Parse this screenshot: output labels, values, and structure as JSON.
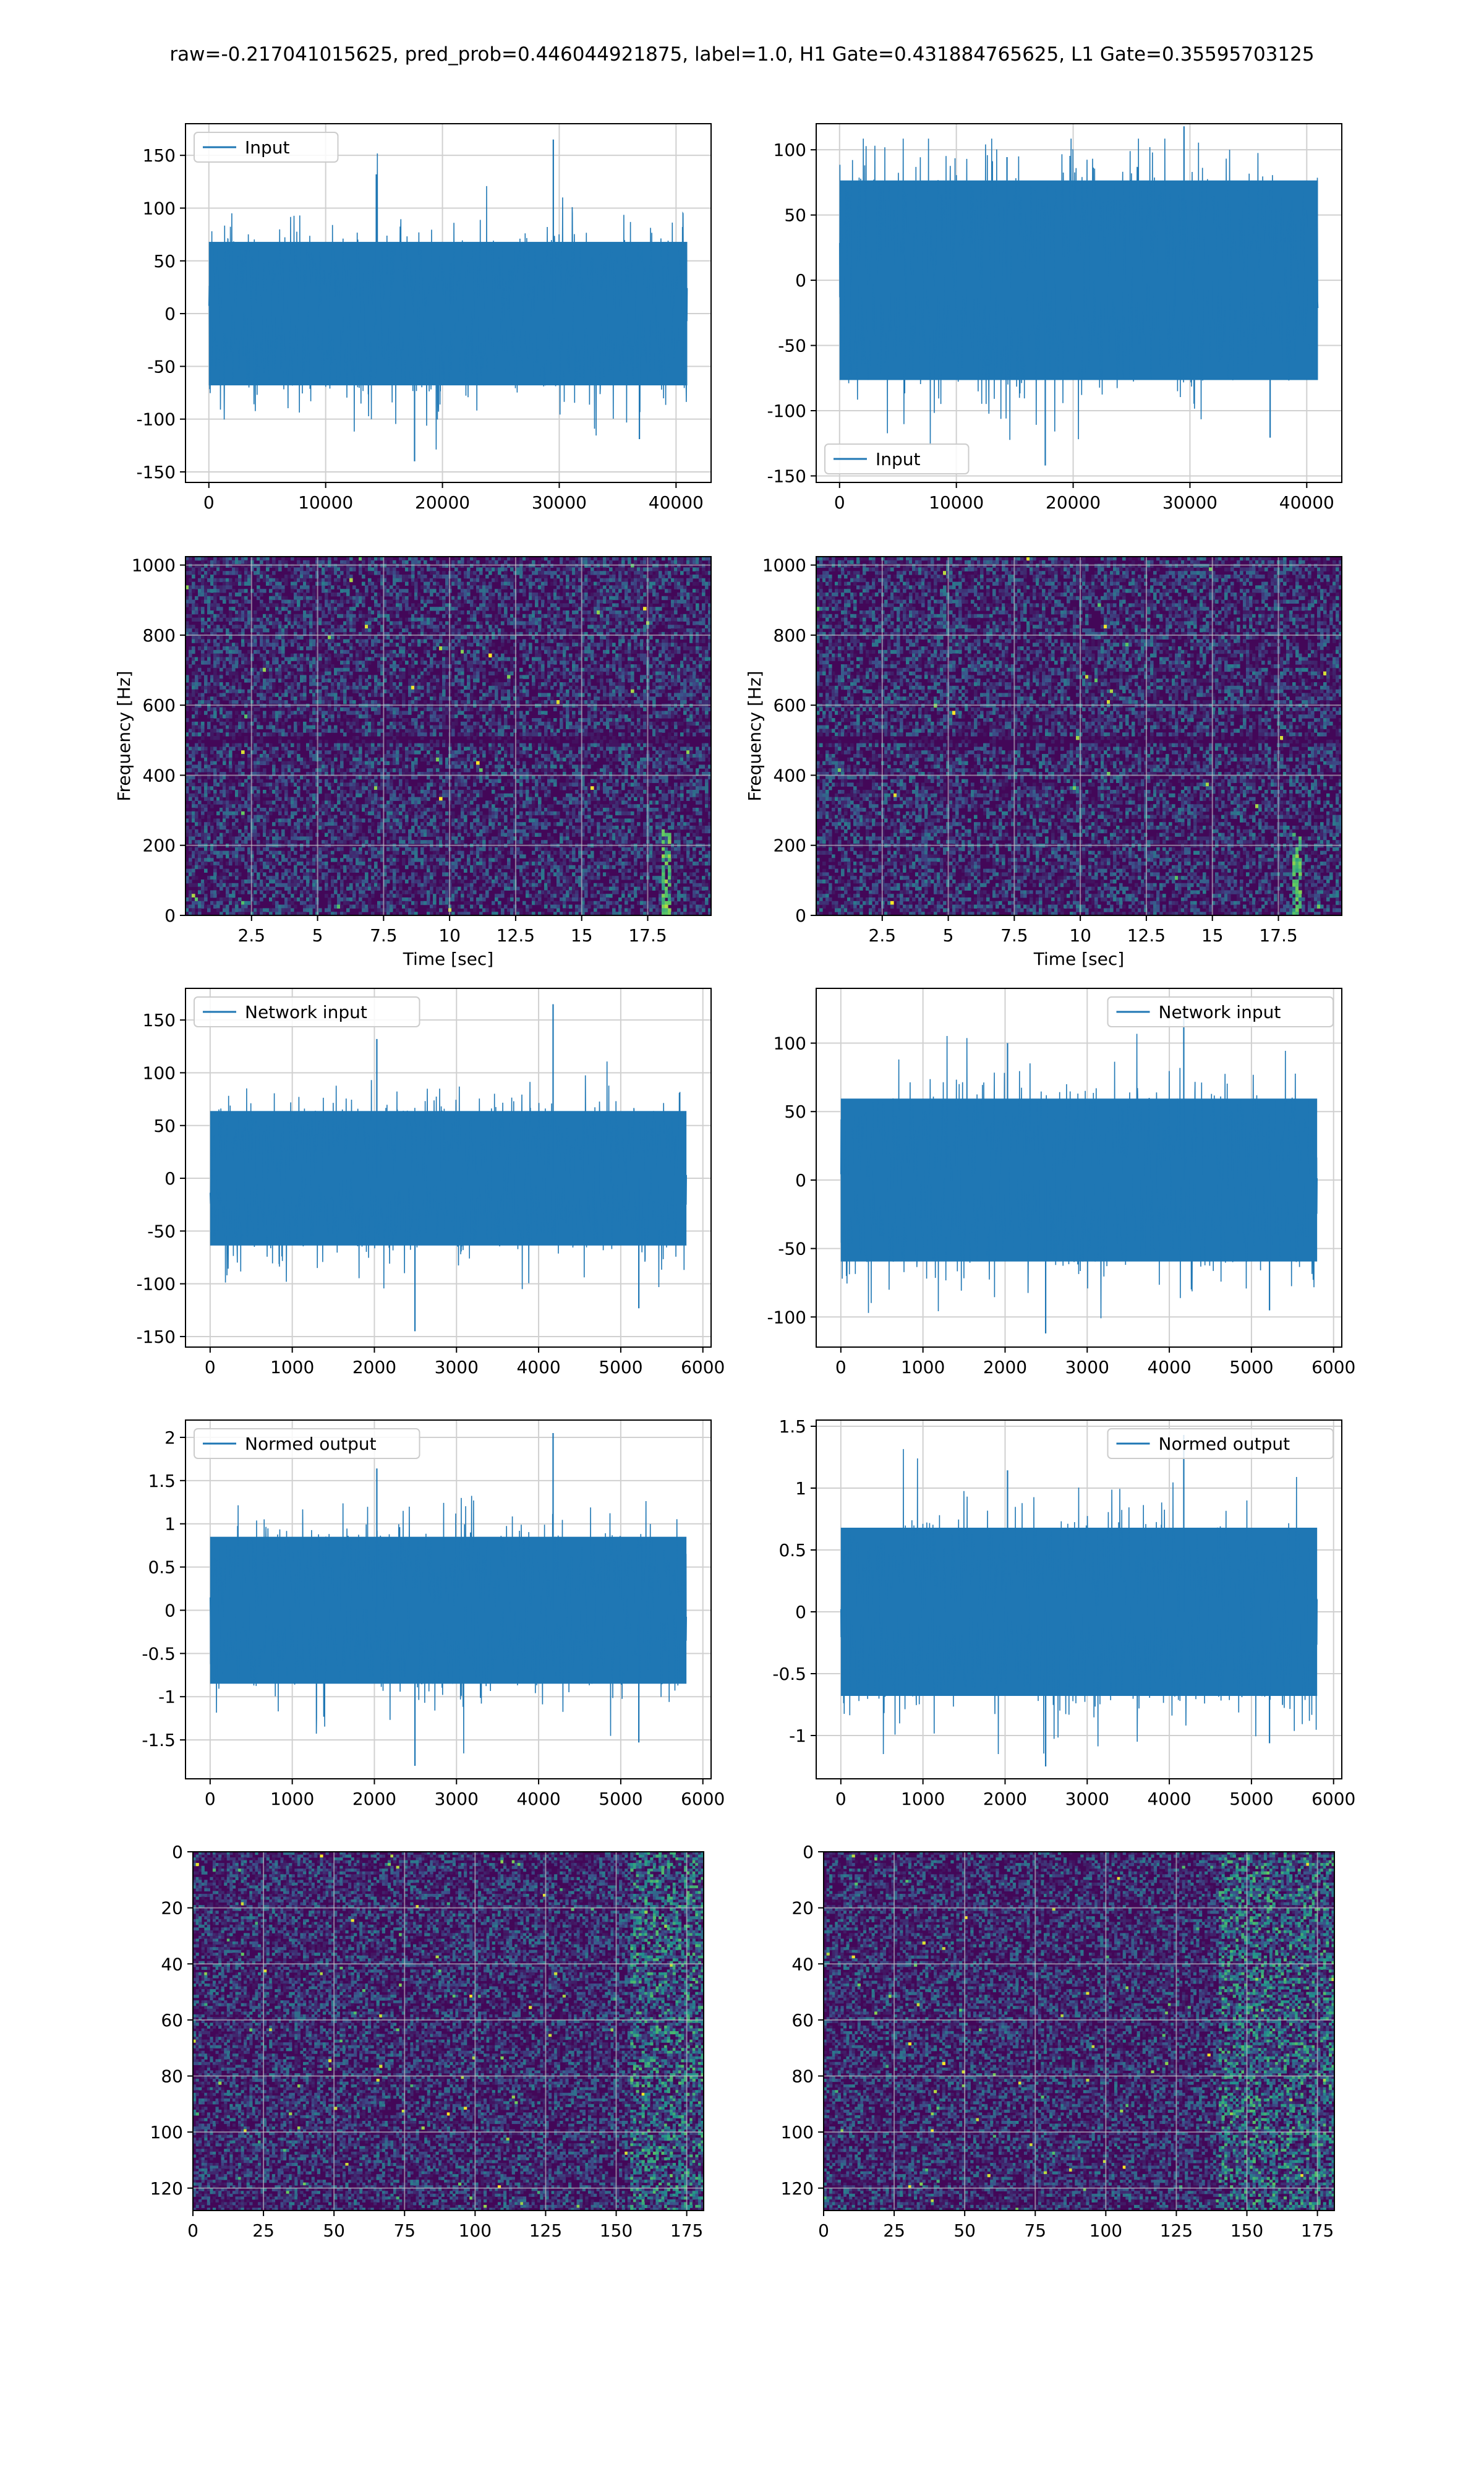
{
  "figure": {
    "title": "raw=-0.217041015625, pred_prob=0.446044921875, label=1.0, H1 Gate=0.431884765625, L1 Gate=0.35595703125"
  },
  "colors": {
    "line": "#1f77b4",
    "grid": "#d0d0d0",
    "viridis_low": "#3b1259",
    "viridis_high": "#fde725"
  },
  "chart_data": [
    {
      "id": "h1-input",
      "type": "line",
      "row": 0,
      "col": 0,
      "series": [
        {
          "name": "Input",
          "n": 40960,
          "amplitude_typical": 80,
          "extremes": {
            "max": 165,
            "min": -140
          }
        }
      ],
      "xlim": [
        -2000,
        43000
      ],
      "ylim": [
        -160,
        180
      ],
      "xticks": [
        0,
        10000,
        20000,
        30000,
        40000
      ],
      "yticks": [
        -150,
        -100,
        -50,
        0,
        50,
        100,
        150
      ],
      "legend": "upper left",
      "grid": true,
      "xlabel": "",
      "ylabel": ""
    },
    {
      "id": "l1-input",
      "type": "line",
      "row": 0,
      "col": 1,
      "series": [
        {
          "name": "Input",
          "n": 40960,
          "amplitude_typical": 90,
          "extremes": {
            "max": 118,
            "min": -142
          }
        }
      ],
      "xlim": [
        -2000,
        43000
      ],
      "ylim": [
        -155,
        120
      ],
      "xticks": [
        0,
        10000,
        20000,
        30000,
        40000
      ],
      "yticks": [
        -150,
        -100,
        -50,
        0,
        50,
        100
      ],
      "legend": "lower left",
      "grid": true,
      "xlabel": "",
      "ylabel": ""
    },
    {
      "id": "h1-spectrogram",
      "type": "heatmap",
      "row": 1,
      "col": 0,
      "xlim": [
        0,
        19.9
      ],
      "ylim": [
        0,
        1024
      ],
      "xticks": [
        2.5,
        5.0,
        7.5,
        10.0,
        12.5,
        15.0,
        17.5
      ],
      "yticks": [
        0,
        200,
        400,
        600,
        800,
        1000
      ],
      "xlabel": "Time [sec]",
      "ylabel": "Frequency [Hz]",
      "grid": true,
      "features": {
        "dark_band_hz": 500,
        "bright_transient_sec": 18.2
      }
    },
    {
      "id": "l1-spectrogram",
      "type": "heatmap",
      "row": 1,
      "col": 1,
      "xlim": [
        0,
        19.9
      ],
      "ylim": [
        0,
        1024
      ],
      "xticks": [
        2.5,
        5.0,
        7.5,
        10.0,
        12.5,
        15.0,
        17.5
      ],
      "yticks": [
        0,
        200,
        400,
        600,
        800,
        1000
      ],
      "xlabel": "Time [sec]",
      "ylabel": "Frequency [Hz]",
      "grid": true,
      "features": {
        "dark_band_hz": 500,
        "bright_transient_sec": 18.2
      }
    },
    {
      "id": "h1-network-input",
      "type": "line",
      "row": 2,
      "col": 0,
      "series": [
        {
          "name": "Network input",
          "n": 5800,
          "amplitude_typical": 75,
          "extremes": {
            "max": 165,
            "min": -145
          }
        }
      ],
      "xlim": [
        -300,
        6100
      ],
      "ylim": [
        -160,
        180
      ],
      "xticks": [
        0,
        1000,
        2000,
        3000,
        4000,
        5000,
        6000
      ],
      "yticks": [
        -150,
        -100,
        -50,
        0,
        50,
        100,
        150
      ],
      "legend": "upper left",
      "grid": true,
      "xlabel": "",
      "ylabel": ""
    },
    {
      "id": "l1-network-input",
      "type": "line",
      "row": 2,
      "col": 1,
      "series": [
        {
          "name": "Network input",
          "n": 5800,
          "amplitude_typical": 70,
          "extremes": {
            "max": 125,
            "min": -112
          }
        }
      ],
      "xlim": [
        -300,
        6100
      ],
      "ylim": [
        -122,
        140
      ],
      "xticks": [
        0,
        1000,
        2000,
        3000,
        4000,
        5000,
        6000
      ],
      "yticks": [
        -100,
        -50,
        0,
        50,
        100
      ],
      "legend": "upper right",
      "grid": true,
      "xlabel": "",
      "ylabel": ""
    },
    {
      "id": "h1-normed-output",
      "type": "line",
      "row": 3,
      "col": 0,
      "series": [
        {
          "name": "Normed output",
          "n": 5800,
          "amplitude_typical": 1.0,
          "extremes": {
            "max": 2.05,
            "min": -1.8
          }
        }
      ],
      "xlim": [
        -300,
        6100
      ],
      "ylim": [
        -1.95,
        2.2
      ],
      "xticks": [
        0,
        1000,
        2000,
        3000,
        4000,
        5000,
        6000
      ],
      "yticks": [
        -1.5,
        -1.0,
        -0.5,
        0.0,
        0.5,
        1.0,
        1.5,
        2.0
      ],
      "legend": "upper left",
      "grid": true,
      "xlabel": "",
      "ylabel": ""
    },
    {
      "id": "l1-normed-output",
      "type": "line",
      "row": 3,
      "col": 1,
      "series": [
        {
          "name": "Normed output",
          "n": 5800,
          "amplitude_typical": 0.8,
          "extremes": {
            "max": 1.43,
            "min": -1.25
          }
        }
      ],
      "xlim": [
        -300,
        6100
      ],
      "ylim": [
        -1.35,
        1.55
      ],
      "xticks": [
        0,
        1000,
        2000,
        3000,
        4000,
        5000,
        6000
      ],
      "yticks": [
        -1.0,
        -0.5,
        0.0,
        0.5,
        1.0,
        1.5
      ],
      "legend": "upper right",
      "grid": true,
      "xlabel": "",
      "ylabel": ""
    },
    {
      "id": "h1-feature-map",
      "type": "heatmap",
      "row": 4,
      "col": 0,
      "dims": [
        128,
        181
      ],
      "xlim": [
        0,
        181
      ],
      "ylim": [
        128,
        0
      ],
      "xticks": [
        0,
        25,
        50,
        75,
        100,
        125,
        150,
        175
      ],
      "yticks": [
        0,
        20,
        40,
        60,
        80,
        100,
        120
      ],
      "grid": true,
      "features": {
        "bright_columns_from": 155
      }
    },
    {
      "id": "l1-feature-map",
      "type": "heatmap",
      "row": 4,
      "col": 1,
      "dims": [
        128,
        181
      ],
      "xlim": [
        0,
        181
      ],
      "ylim": [
        128,
        0
      ],
      "xticks": [
        0,
        25,
        50,
        75,
        100,
        125,
        150,
        175
      ],
      "yticks": [
        0,
        20,
        40,
        60,
        80,
        100,
        120
      ],
      "grid": true,
      "features": {
        "bright_columns_from": 140
      }
    }
  ]
}
